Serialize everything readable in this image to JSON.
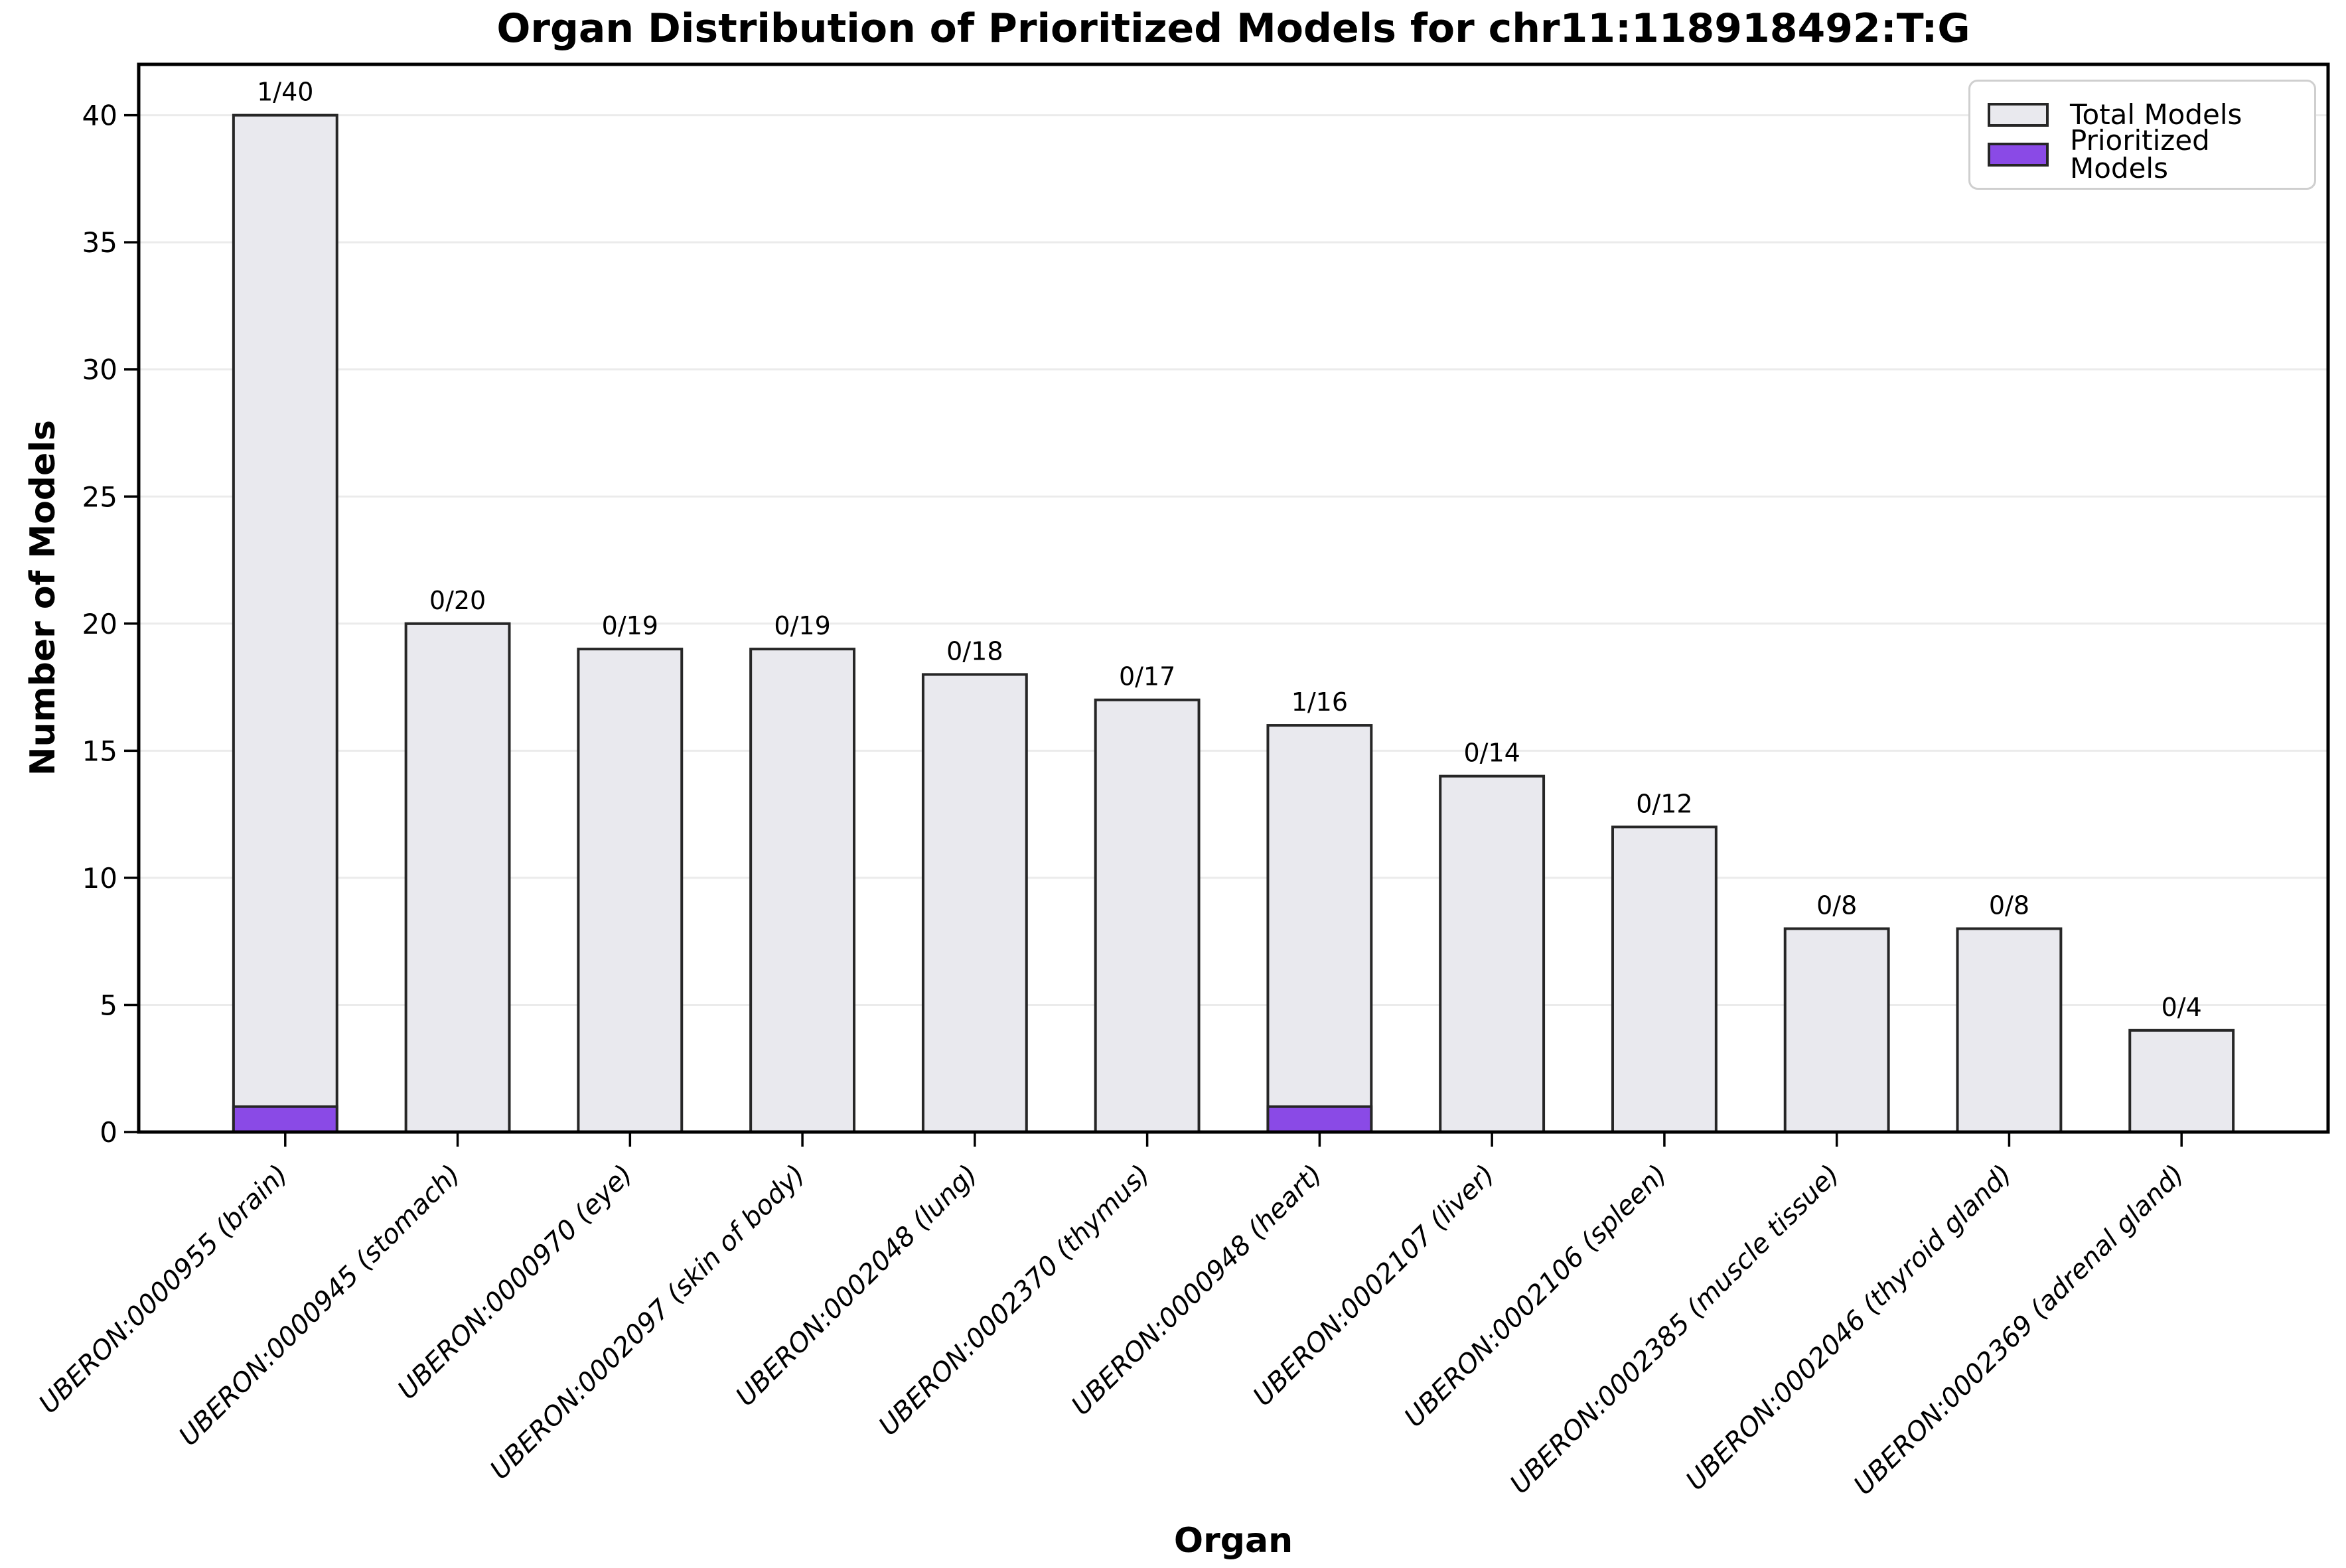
{
  "figure": {
    "title": "Organ Distribution of Prioritized Models for chr11:118918492:T:G",
    "xlabel": "Organ",
    "ylabel": "Number of Models"
  },
  "chart_data": {
    "type": "bar",
    "title": "Organ Distribution of Prioritized Models for chr11:118918492:T:G",
    "xlabel": "Organ",
    "ylabel": "Number of Models",
    "ylim": [
      0,
      42
    ],
    "yticks": [
      0,
      5,
      10,
      15,
      20,
      25,
      30,
      35,
      40
    ],
    "grid": "horizontal light gray, behind bars",
    "legend_position": "upper right",
    "categories": [
      "UBERON:0000955 (brain)",
      "UBERON:0000945 (stomach)",
      "UBERON:0000970 (eye)",
      "UBERON:0002097 (skin of body)",
      "UBERON:0002048 (lung)",
      "UBERON:0002370 (thymus)",
      "UBERON:0000948 (heart)",
      "UBERON:0002107 (liver)",
      "UBERON:0002106 (spleen)",
      "UBERON:0002385 (muscle tissue)",
      "UBERON:0002046 (thyroid gland)",
      "UBERON:0002369 (adrenal gland)"
    ],
    "series": [
      {
        "name": "Total Models",
        "color": "#e9e9ee",
        "values": [
          40,
          20,
          19,
          19,
          18,
          17,
          16,
          14,
          12,
          8,
          8,
          4
        ]
      },
      {
        "name": "Prioritized Models",
        "color": "#8a4ae6",
        "values": [
          1,
          0,
          0,
          0,
          0,
          0,
          1,
          0,
          0,
          0,
          0,
          0
        ]
      }
    ],
    "bar_labels": [
      "1/40",
      "0/20",
      "0/19",
      "0/19",
      "0/18",
      "0/17",
      "1/16",
      "0/14",
      "0/12",
      "0/8",
      "0/8",
      "0/4"
    ],
    "bar_edge_color": "#262626",
    "gridline_color": "#ebebeb",
    "spine_color": "#000000"
  }
}
